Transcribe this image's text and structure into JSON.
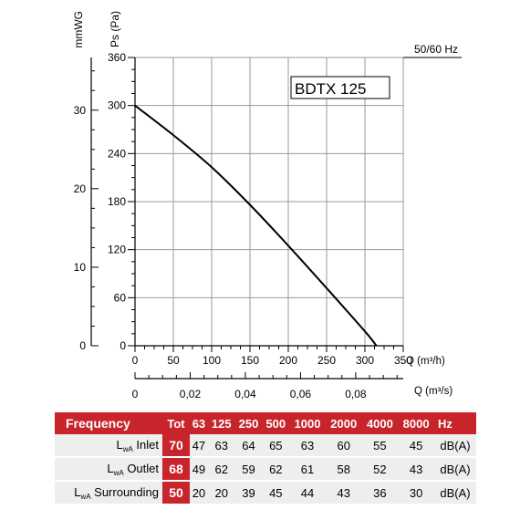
{
  "chart_data": {
    "type": "line",
    "model_label": "BDTX 125",
    "frequency_label": "50/60 Hz",
    "ylabel_pa": "Ps (Pa)",
    "ylabel_mmwg": "mmWG",
    "xlabel_m3h": "Q (m³/h)",
    "xlabel_m3s": "Q (m³/s)",
    "xlim": [
      0,
      350
    ],
    "ylim": [
      0,
      360
    ],
    "grid": true,
    "x_ticks_m3h": [
      0,
      50,
      100,
      150,
      200,
      250,
      300,
      350
    ],
    "y_ticks_pa": [
      0,
      60,
      120,
      180,
      240,
      300,
      360
    ],
    "y_ticks_mmwg": [
      {
        "value": 0,
        "label": "0"
      },
      {
        "value": 10,
        "label": "10"
      },
      {
        "value": 20,
        "label": "20"
      },
      {
        "value": 30,
        "label": "30"
      }
    ],
    "x_ticks_m3s": [
      {
        "value": 0,
        "label": "0"
      },
      {
        "value": 0.02,
        "label": "0,02"
      },
      {
        "value": 0.04,
        "label": "0,04"
      },
      {
        "value": 0.06,
        "label": "0,06"
      },
      {
        "value": 0.08,
        "label": "0,08"
      }
    ],
    "series": [
      {
        "x": [
          0,
          50,
          100,
          150,
          200,
          250,
          300,
          315
        ],
        "y": [
          300,
          263,
          223,
          176,
          125,
          72,
          18,
          0
        ]
      }
    ]
  },
  "colors": {
    "accent": "#c8242b",
    "table_row": "#eeeeee",
    "grid": "#9a9a9a"
  },
  "table": {
    "header": {
      "label": "Frequency",
      "tot": "Tot",
      "bands": [
        "63",
        "125",
        "250",
        "500",
        "1000",
        "2000",
        "4000",
        "8000"
      ],
      "unit": "Hz"
    },
    "rows": [
      {
        "l": "L",
        "sub": "wA",
        "name": " Inlet",
        "tot": "70",
        "values": [
          "47",
          "63",
          "64",
          "65",
          "63",
          "60",
          "55",
          "45"
        ],
        "unit": "dB(A)"
      },
      {
        "l": "L",
        "sub": "wA",
        "name": " Outlet",
        "tot": "68",
        "values": [
          "49",
          "62",
          "59",
          "62",
          "61",
          "58",
          "52",
          "43"
        ],
        "unit": "dB(A)"
      },
      {
        "l": "L",
        "sub": "wA",
        "name": " Surrounding",
        "tot": "50",
        "values": [
          "20",
          "20",
          "39",
          "45",
          "44",
          "43",
          "36",
          "30"
        ],
        "unit": "dB(A)"
      }
    ]
  }
}
